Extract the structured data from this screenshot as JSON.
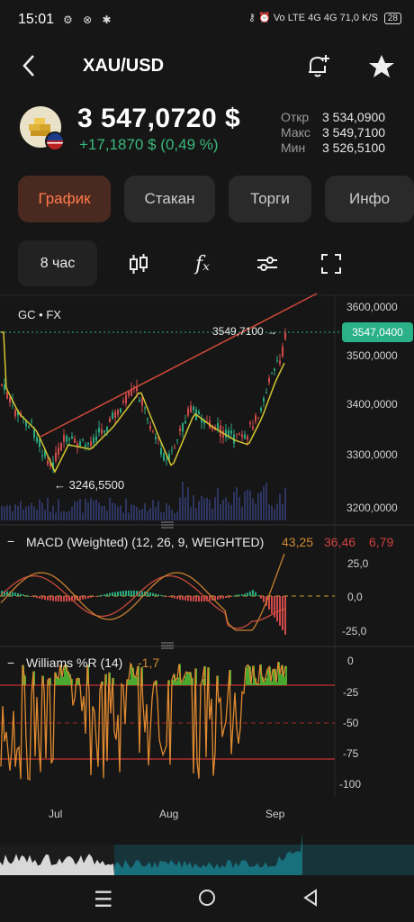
{
  "status_bar": {
    "time": "15:01",
    "network": "Vo LTE 4G 4G",
    "speed": "71,0 K/S",
    "battery": "28"
  },
  "header": {
    "title": "XAU/USD",
    "back_icon": "chevron-left-icon",
    "alert_icon": "bell-plus-icon",
    "favorite_icon": "star-icon"
  },
  "quote": {
    "price": "3 547,0720 $",
    "change": "+17,1870 $ (0,49 %)",
    "change_color": "#39b97b",
    "stats": [
      {
        "label": "Откр",
        "value": "3 534,0900"
      },
      {
        "label": "Макс",
        "value": "3 549,7100"
      },
      {
        "label": "Мин",
        "value": "3 526,5100"
      }
    ]
  },
  "tabs": [
    {
      "label": "График",
      "active": true
    },
    {
      "label": "Стакан",
      "active": false
    },
    {
      "label": "Торги",
      "active": false
    },
    {
      "label": "Инфо",
      "active": false
    }
  ],
  "toolbar": {
    "interval": "8 час",
    "tools": [
      "candles-icon",
      "function-icon",
      "settings-sliders-icon",
      "fullscreen-icon"
    ]
  },
  "main_chart": {
    "source": "GC",
    "source_sep": "•",
    "exchange": "FX",
    "last_price_tag": "3547,0400",
    "high_marker": "3549,7100 →",
    "low_marker": "← 3246,5500",
    "y_ticks": [
      "3600,0000",
      "3500,0000",
      "3400,0000",
      "3300,0000",
      "3200,0000"
    ],
    "accent": "#2bb187"
  },
  "macd": {
    "title": "MACD (Weighted) (12, 26, 9, WEIGHTED)",
    "values": [
      "43,25",
      "36,46",
      "6,79"
    ],
    "value_colors": [
      "#d08a30",
      "#d04040",
      "#d04040"
    ],
    "y_ticks": [
      "25,0",
      "0,0",
      "-25,0"
    ]
  },
  "williams": {
    "title": "Williams %R (14)",
    "value": "-1,7",
    "value_color": "#d08a30",
    "y_ticks": [
      "0",
      "-25",
      "-50",
      "-75",
      "-100"
    ]
  },
  "x_axis": [
    "Jul",
    "Aug",
    "Sep"
  ],
  "nav": {
    "menu_icon": "menu-icon",
    "home_icon": "home-circle-icon",
    "back_icon": "back-triangle-icon"
  }
}
